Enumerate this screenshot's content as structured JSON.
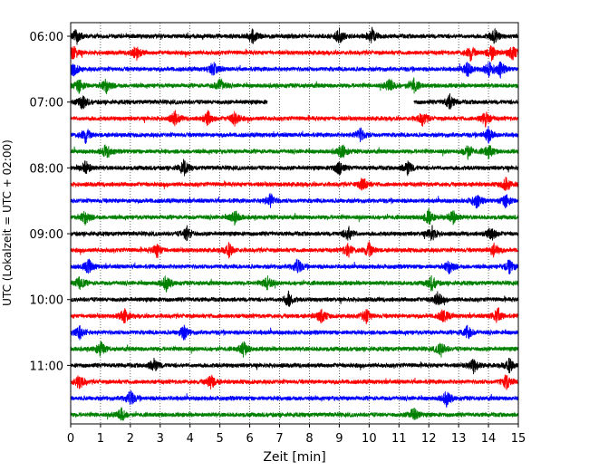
{
  "chart_data": {
    "type": "line",
    "title": "",
    "xlabel": "Zeit  [min]",
    "ylabel": "UTC (Lokalzeit = UTC + 02:00)",
    "xlim": [
      0,
      15
    ],
    "xticks": [
      0,
      1,
      2,
      3,
      4,
      5,
      6,
      7,
      8,
      9,
      10,
      11,
      12,
      13,
      14,
      15
    ],
    "x_grid": "dotted",
    "trace_colors": [
      "#000000",
      "#ff0000",
      "#0000ff",
      "#008000"
    ],
    "yticks": [
      "06:00",
      "07:00",
      "08:00",
      "09:00",
      "10:00",
      "11:00"
    ],
    "trace_start_times": [
      "06:00",
      "06:15",
      "06:30",
      "06:45",
      "07:00",
      "07:15",
      "07:30",
      "07:45",
      "08:00",
      "08:15",
      "08:30",
      "08:45",
      "09:00",
      "09:15",
      "09:30",
      "09:45",
      "10:00",
      "10:15",
      "10:30",
      "10:45",
      "11:00",
      "11:15",
      "11:30",
      "11:45"
    ],
    "gaps": [
      {
        "trace": "07:00",
        "x_range": [
          6.6,
          11.5
        ]
      }
    ],
    "events": [
      {
        "trace": "06:00",
        "x": [
          0.2,
          6.1,
          9.0,
          10.1,
          14.2
        ]
      },
      {
        "trace": "06:15",
        "x": [
          0.1,
          2.2,
          13.4,
          14.1,
          14.8
        ]
      },
      {
        "trace": "06:30",
        "x": [
          0.1,
          4.8,
          13.3,
          14.0,
          14.4
        ]
      },
      {
        "trace": "06:45",
        "x": [
          0.3,
          1.2,
          5.0,
          10.7,
          11.5
        ]
      },
      {
        "trace": "07:00",
        "x": [
          0.4,
          12.7
        ]
      },
      {
        "trace": "07:15",
        "x": [
          3.5,
          4.6,
          5.5,
          11.8,
          13.9
        ]
      },
      {
        "trace": "07:30",
        "x": [
          0.5,
          9.7,
          14.0
        ]
      },
      {
        "trace": "07:45",
        "x": [
          1.2,
          9.1,
          13.3,
          14.0
        ]
      },
      {
        "trace": "08:00",
        "x": [
          0.5,
          3.8,
          9.0,
          11.3
        ]
      },
      {
        "trace": "08:15",
        "x": [
          9.8,
          14.6
        ]
      },
      {
        "trace": "08:30",
        "x": [
          6.7,
          13.6,
          14.6
        ]
      },
      {
        "trace": "08:45",
        "x": [
          0.5,
          5.5,
          12.0,
          12.8
        ]
      },
      {
        "trace": "09:00",
        "x": [
          3.9,
          9.3,
          12.1,
          14.1
        ]
      },
      {
        "trace": "09:15",
        "x": [
          2.9,
          5.3,
          9.3,
          10.0,
          14.2
        ]
      },
      {
        "trace": "09:30",
        "x": [
          0.6,
          7.6,
          12.7,
          14.7
        ]
      },
      {
        "trace": "09:45",
        "x": [
          0.3,
          3.2,
          6.6,
          12.1
        ]
      },
      {
        "trace": "10:00",
        "x": [
          7.3,
          12.3
        ]
      },
      {
        "trace": "10:15",
        "x": [
          1.8,
          8.4,
          9.9,
          12.5,
          14.3
        ]
      },
      {
        "trace": "10:30",
        "x": [
          0.3,
          3.8,
          13.3
        ]
      },
      {
        "trace": "10:45",
        "x": [
          1.0,
          5.8,
          12.4
        ]
      },
      {
        "trace": "11:00",
        "x": [
          2.8,
          13.5,
          14.7
        ]
      },
      {
        "trace": "11:15",
        "x": [
          0.3,
          4.7,
          14.6
        ]
      },
      {
        "trace": "11:30",
        "x": [
          2.0,
          12.6
        ]
      },
      {
        "trace": "11:45",
        "x": [
          1.7,
          11.5
        ]
      }
    ]
  }
}
